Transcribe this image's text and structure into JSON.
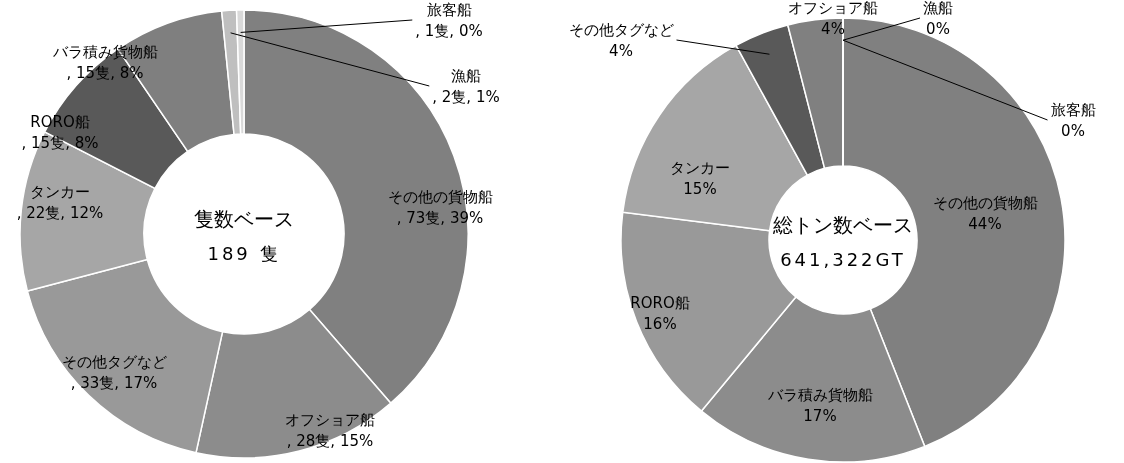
{
  "chart_data": [
    {
      "type": "donut",
      "title": "隻数ベース",
      "subtitle": "189 隻",
      "categories": [
        "その他の貨物船",
        "オフショア船",
        "その他タグなど",
        "タンカー",
        "RORO船",
        "バラ積み貨物船",
        "漁船",
        "旅客船"
      ],
      "values": [
        73,
        28,
        33,
        22,
        15,
        15,
        2,
        1
      ],
      "value_labels": [
        ", 73隻, 39%",
        ", 28隻, 15%",
        ", 33隻, 17%",
        ", 22隻, 12%",
        ", 15隻, 8%",
        ", 15隻, 8%",
        ", 2隻, 1%",
        ", 1隻, 0%"
      ],
      "colors": [
        "#808080",
        "#8c8c8c",
        "#999999",
        "#a6a6a6",
        "#595959",
        "#7f7f7f",
        "#bfbfbf",
        "#d9d9d9"
      ]
    },
    {
      "type": "donut",
      "title": "総トン数ベース",
      "subtitle": "641,322GT",
      "categories": [
        "その他の貨物船",
        "バラ積み貨物船",
        "RORO船",
        "タンカー",
        "その他タグなど",
        "オフショア船",
        "漁船",
        "旅客船"
      ],
      "values": [
        44,
        17,
        16,
        15,
        4,
        4,
        0,
        0
      ],
      "value_labels": [
        "44%",
        "17%",
        "16%",
        "15%",
        "4%",
        "4%",
        "0%",
        "0%"
      ],
      "colors": [
        "#808080",
        "#8c8c8c",
        "#999999",
        "#a6a6a6",
        "#595959",
        "#808080",
        "#bfbfbf",
        "#d9d9d9"
      ]
    }
  ]
}
